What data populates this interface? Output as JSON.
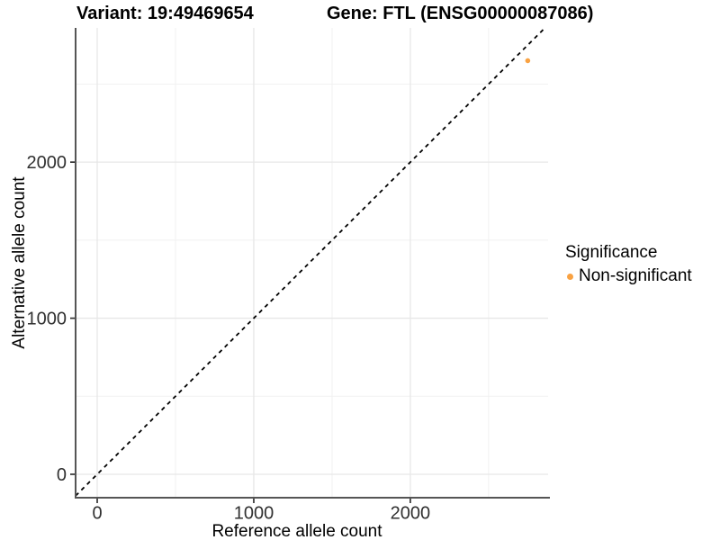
{
  "chart_data": {
    "type": "scatter",
    "title_left": "Variant: 19:49469654",
    "title_right": "Gene: FTL (ENSG00000087086)",
    "xlabel": "Reference allele count",
    "ylabel": "Alternative allele count",
    "xlim": [
      -138,
      2880
    ],
    "ylim": [
      -150,
      2860
    ],
    "x_major_ticks": [
      0,
      1000,
      2000
    ],
    "y_major_ticks": [
      0,
      1000,
      2000
    ],
    "x_minor_ticks": [
      500,
      1500,
      2500
    ],
    "y_minor_ticks": [
      500,
      1500,
      2500
    ],
    "grid": "major+minor",
    "identity_line": {
      "style": "dashed",
      "color": "#000000",
      "slope": 1,
      "intercept": 0
    },
    "series": [
      {
        "name": "Non-significant",
        "color": "#F9A242",
        "points": [
          {
            "x": 2750,
            "y": 2650
          }
        ]
      }
    ],
    "legend": {
      "title": "Significance",
      "position": "right",
      "items": [
        {
          "label": "Non-significant",
          "color": "#F9A242",
          "marker": "circle"
        }
      ]
    },
    "colors": {
      "background": "#FFFFFF",
      "axis_line": "#555555",
      "tick_mark": "#333333",
      "tick_text": "#303030",
      "grid_major": "#E7E7E7",
      "grid_minor": "#F1F1F1"
    }
  }
}
